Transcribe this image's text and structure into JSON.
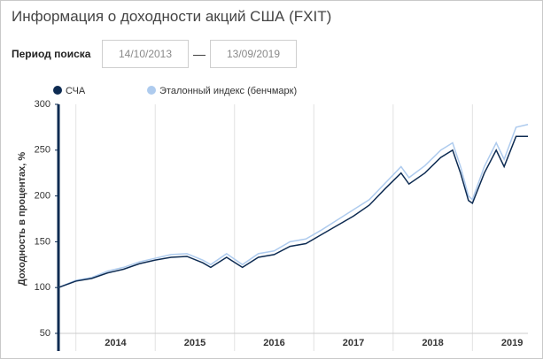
{
  "search": {
    "label": "Период поиска",
    "from": "14/10/2013",
    "to": "13/09/2019"
  },
  "chart_data": {
    "type": "line",
    "title": "Информация о доходности акций США (FXIT)",
    "y_label": "Доходность в процентах, %",
    "x": [
      2013.78,
      2014.0,
      2014.2,
      2014.4,
      2014.6,
      2014.8,
      2015.0,
      2015.2,
      2015.4,
      2015.6,
      2015.7,
      2015.9,
      2016.1,
      2016.3,
      2016.5,
      2016.7,
      2016.9,
      2017.1,
      2017.3,
      2017.5,
      2017.7,
      2017.9,
      2018.1,
      2018.2,
      2018.4,
      2018.6,
      2018.75,
      2018.85,
      2018.95,
      2019.0,
      2019.15,
      2019.3,
      2019.4,
      2019.55,
      2019.7
    ],
    "series": [
      {
        "name": "СЧА",
        "color": "#0d2b52",
        "values": [
          100,
          107,
          110,
          116,
          120,
          126,
          130,
          133,
          134,
          127,
          122,
          133,
          122,
          133,
          136,
          145,
          148,
          158,
          168,
          178,
          190,
          208,
          225,
          213,
          225,
          242,
          250,
          225,
          195,
          192,
          225,
          250,
          232,
          265,
          265
        ]
      },
      {
        "name": "Эталонный индекс (бенчмарк)",
        "color": "#aecbee",
        "values": [
          100,
          108,
          111,
          118,
          122,
          128,
          132,
          136,
          137,
          130,
          125,
          137,
          125,
          137,
          140,
          150,
          153,
          163,
          174,
          185,
          196,
          214,
          232,
          220,
          233,
          250,
          258,
          232,
          200,
          196,
          232,
          258,
          240,
          275,
          278
        ]
      }
    ],
    "xlim": [
      2013.78,
      2019.7
    ],
    "xticks": [
      2014,
      2015,
      2016,
      2017,
      2018,
      2019
    ],
    "ylim": [
      50,
      300
    ],
    "yticks": [
      50,
      100,
      150,
      200,
      250,
      300
    ],
    "grid": true
  }
}
